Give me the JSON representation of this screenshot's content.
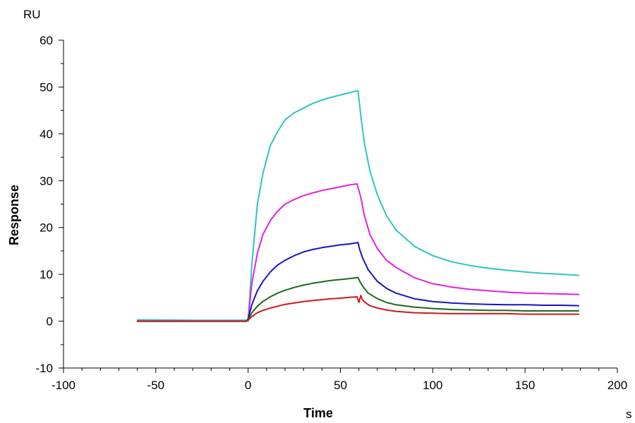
{
  "chart_data": {
    "type": "line",
    "title": "",
    "xlabel": "Time",
    "ylabel": "Response",
    "x_unit": "s",
    "y_unit": "RU",
    "xlim": [
      -100,
      200
    ],
    "ylim": [
      -10,
      60
    ],
    "x_ticks": [
      -100,
      -50,
      0,
      50,
      100,
      150,
      200
    ],
    "y_ticks": [
      -10,
      0,
      10,
      20,
      30,
      40,
      50,
      60
    ],
    "x_tick_labels": [
      "-100",
      "-50",
      "0",
      "50",
      "100",
      "150",
      "200"
    ],
    "y_tick_labels": [
      "-10",
      "0",
      "10",
      "20",
      "30",
      "40",
      "50",
      "60"
    ],
    "grid": false,
    "legend": "none",
    "series": [
      {
        "color": "#2ec4c4",
        "x": [
          -60,
          -30,
          -1,
          0,
          2,
          5,
          8,
          12,
          16,
          20,
          25,
          30,
          35,
          40,
          45,
          50,
          55,
          59.5,
          61,
          63,
          66,
          70,
          75,
          80,
          90,
          100,
          110,
          120,
          130,
          140,
          150,
          160,
          170,
          179
        ],
        "y": [
          0.3,
          0.2,
          0.2,
          0,
          12,
          25,
          31.5,
          37.5,
          40.5,
          43,
          44.5,
          45.5,
          46.5,
          47.2,
          47.8,
          48.3,
          48.8,
          49.2,
          44,
          38,
          32,
          27,
          22.5,
          19.5,
          16,
          14,
          12.7,
          11.9,
          11.3,
          10.9,
          10.5,
          10.2,
          10,
          9.8
        ]
      },
      {
        "color": "#e020e0",
        "x": [
          -60,
          -30,
          -1,
          0,
          2,
          5,
          8,
          12,
          16,
          20,
          25,
          30,
          35,
          40,
          45,
          50,
          55,
          59,
          61,
          63,
          66,
          70,
          75,
          80,
          90,
          100,
          110,
          120,
          130,
          140,
          150,
          160,
          170,
          179
        ],
        "y": [
          0,
          0,
          0,
          0.5,
          8,
          14.5,
          18.5,
          21.5,
          23.5,
          25,
          26,
          26.8,
          27.4,
          27.9,
          28.3,
          28.7,
          29.1,
          29.3,
          26.5,
          22.5,
          18.5,
          15.5,
          13,
          11.5,
          9.3,
          8,
          7.3,
          6.8,
          6.5,
          6.2,
          6,
          5.9,
          5.8,
          5.7
        ]
      },
      {
        "color": "#1515c0",
        "x": [
          -60,
          -30,
          -1,
          0,
          2,
          5,
          8,
          12,
          16,
          20,
          25,
          30,
          35,
          40,
          45,
          50,
          55,
          59.5,
          60.5,
          62,
          65,
          70,
          75,
          80,
          90,
          100,
          110,
          120,
          130,
          140,
          150,
          160,
          170,
          179
        ],
        "y": [
          0,
          0,
          0,
          0.5,
          3.5,
          6.5,
          8.5,
          10.5,
          12,
          13,
          14,
          14.8,
          15.3,
          15.7,
          16,
          16.3,
          16.5,
          16.8,
          15.2,
          13.5,
          11,
          8.5,
          7,
          6,
          4.8,
          4.2,
          3.9,
          3.7,
          3.6,
          3.5,
          3.5,
          3.4,
          3.4,
          3.3
        ]
      },
      {
        "color": "#1a6a1a",
        "x": [
          -60,
          -30,
          -1,
          0,
          2,
          5,
          8,
          12,
          16,
          20,
          25,
          30,
          35,
          40,
          45,
          50,
          55,
          59.5,
          60.5,
          62,
          65,
          70,
          75,
          80,
          90,
          100,
          110,
          120,
          130,
          140,
          150,
          160,
          170,
          179
        ],
        "y": [
          0,
          0,
          0,
          0.3,
          1.8,
          3.2,
          4.2,
          5.2,
          6,
          6.6,
          7.2,
          7.7,
          8.1,
          8.4,
          8.7,
          8.9,
          9.1,
          9.3,
          8.5,
          7.5,
          6,
          4.8,
          4,
          3.5,
          3,
          2.7,
          2.5,
          2.4,
          2.3,
          2.3,
          2.2,
          2.2,
          2.2,
          2.2
        ]
      },
      {
        "color": "#cc1a1a",
        "x": [
          -60,
          -30,
          -1,
          0,
          2,
          5,
          8,
          12,
          16,
          20,
          25,
          30,
          35,
          40,
          45,
          50,
          55,
          59,
          60,
          61,
          62,
          64,
          66,
          70,
          75,
          80,
          90,
          100,
          110,
          120,
          130,
          140,
          150,
          160,
          170,
          179
        ],
        "y": [
          0,
          0,
          0,
          0.2,
          1,
          1.8,
          2.3,
          2.8,
          3.2,
          3.6,
          3.9,
          4.2,
          4.4,
          4.6,
          4.8,
          4.9,
          5.1,
          5.2,
          4,
          5.5,
          4.5,
          3.8,
          3.3,
          2.8,
          2.4,
          2.1,
          1.8,
          1.7,
          1.6,
          1.6,
          1.6,
          1.6,
          1.5,
          1.5,
          1.5,
          1.5
        ]
      }
    ]
  }
}
